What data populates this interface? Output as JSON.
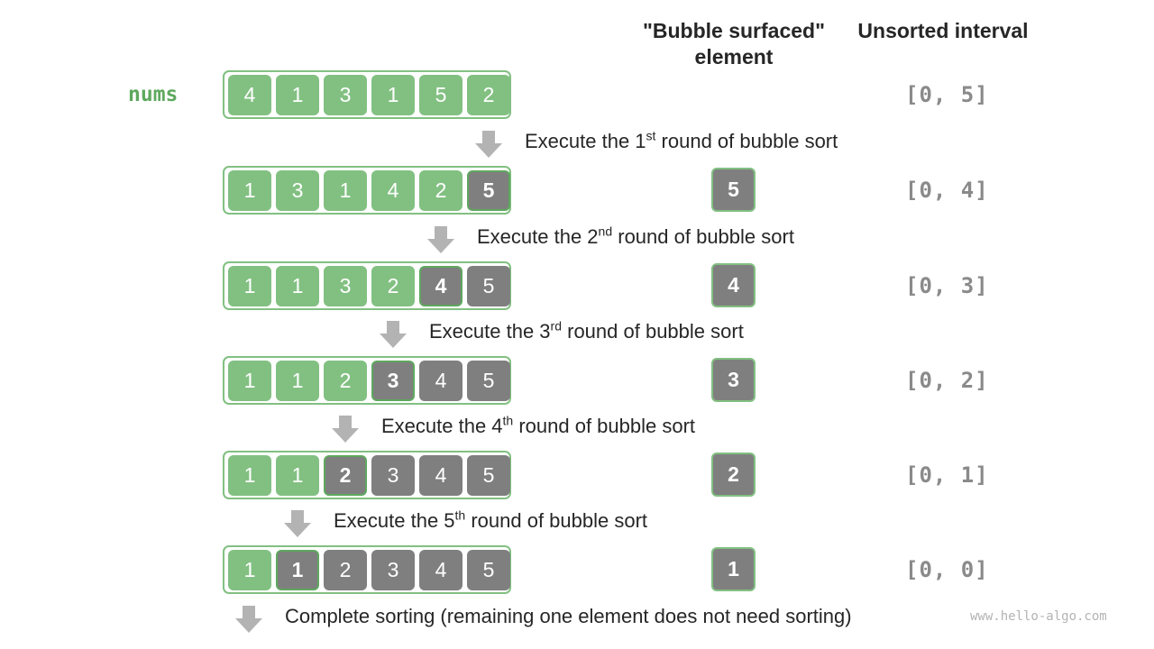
{
  "headers": {
    "bubble_line1": "\"Bubble surfaced\"",
    "bubble_line2": "element",
    "interval": "Unsorted interval"
  },
  "array_label": "nums",
  "rows": [
    {
      "values": [
        "4",
        "1",
        "3",
        "1",
        "5",
        "2"
      ],
      "sorted_from": 6,
      "bubbled": null,
      "interval": "[0, 5]"
    },
    {
      "values": [
        "1",
        "3",
        "1",
        "4",
        "2",
        "5"
      ],
      "sorted_from": 5,
      "bubbled": "5",
      "interval": "[0, 4]"
    },
    {
      "values": [
        "1",
        "1",
        "3",
        "2",
        "4",
        "5"
      ],
      "sorted_from": 4,
      "bubbled": "4",
      "interval": "[0, 3]"
    },
    {
      "values": [
        "1",
        "1",
        "2",
        "3",
        "4",
        "5"
      ],
      "sorted_from": 3,
      "bubbled": "3",
      "interval": "[0, 2]"
    },
    {
      "values": [
        "1",
        "1",
        "2",
        "3",
        "4",
        "5"
      ],
      "sorted_from": 2,
      "bubbled": "2",
      "interval": "[0, 1]"
    },
    {
      "values": [
        "1",
        "1",
        "2",
        "3",
        "4",
        "5"
      ],
      "sorted_from": 1,
      "bubbled": "1",
      "interval": "[0, 0]"
    }
  ],
  "steps": [
    {
      "pre": "Execute the 1",
      "sup": "st",
      "post": " round of bubble sort"
    },
    {
      "pre": "Execute the 2",
      "sup": "nd",
      "post": " round of bubble sort"
    },
    {
      "pre": "Execute the 3",
      "sup": "rd",
      "post": " round of bubble sort"
    },
    {
      "pre": "Execute the 4",
      "sup": "th",
      "post": " round of bubble sort"
    },
    {
      "pre": "Execute the 5",
      "sup": "th",
      "post": " round of bubble sort"
    },
    {
      "pre": "Complete sorting (remaining one element does not need sorting)",
      "sup": "",
      "post": ""
    }
  ],
  "watermark": "www.hello-algo.com",
  "colors": {
    "unsorted": "#82c082",
    "sorted": "#7f7f7f",
    "arrow": "#b3b3b3",
    "label": "#5ea85e"
  }
}
